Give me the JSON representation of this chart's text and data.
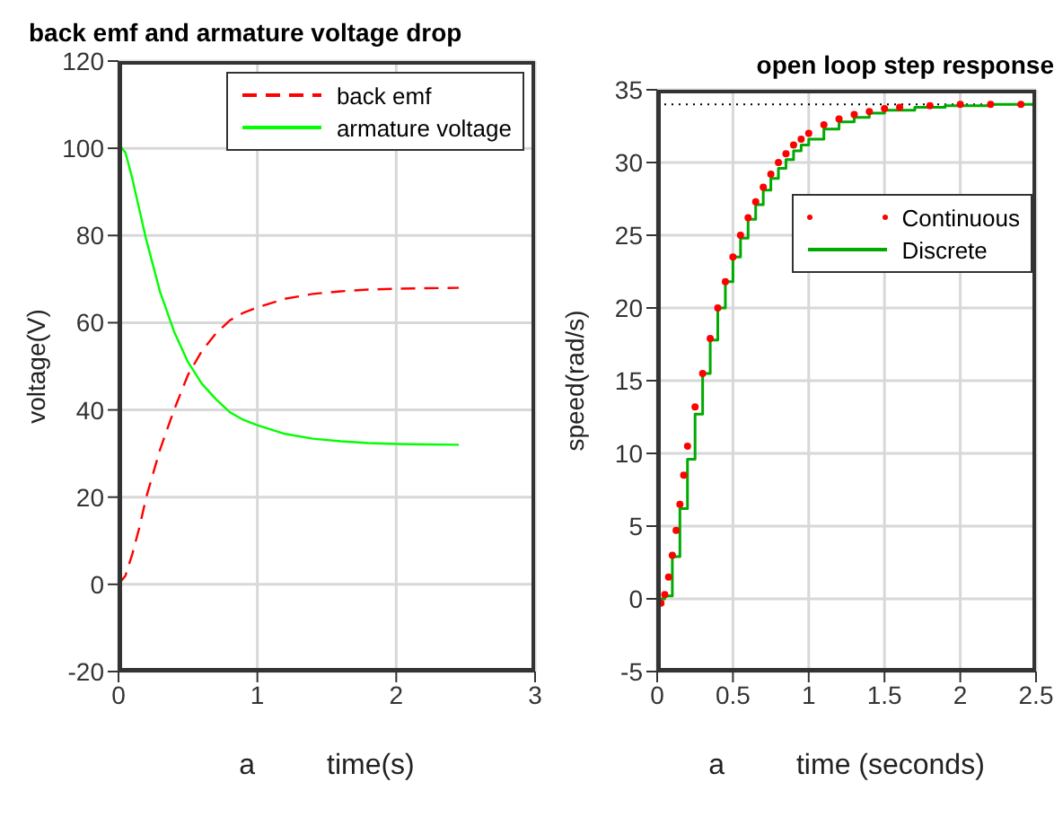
{
  "chart_data": [
    {
      "type": "line",
      "title": "back emf and armature voltage drop",
      "xlabel": "time(s)",
      "ylabel": "voltage(V)",
      "annotations": [
        "a"
      ],
      "xlim": [
        0,
        3
      ],
      "xticks": [
        0,
        1,
        2,
        3
      ],
      "ylim": [
        -20,
        120
      ],
      "yticks": [
        -20,
        0,
        20,
        40,
        60,
        80,
        100,
        120
      ],
      "grid": true,
      "legend": "top right",
      "x": [
        0,
        0.05,
        0.1,
        0.15,
        0.2,
        0.3,
        0.4,
        0.5,
        0.6,
        0.7,
        0.8,
        0.9,
        1.0,
        1.2,
        1.4,
        1.6,
        1.8,
        2.0,
        2.2,
        2.45
      ],
      "series": [
        {
          "name": "back emf",
          "color": "#ff0000",
          "line_style": "dashed",
          "values": [
            0,
            2,
            7,
            13,
            20,
            31,
            40,
            48,
            53.5,
            57.5,
            60.5,
            62.3,
            63.5,
            65.5,
            66.6,
            67.2,
            67.6,
            67.8,
            67.9,
            68
          ]
        },
        {
          "name": "armature voltage",
          "color": "#00ff00",
          "line_style": "solid",
          "values": [
            101,
            99,
            93,
            86,
            79,
            67,
            58,
            51,
            46,
            42.5,
            39.5,
            37.7,
            36.5,
            34.5,
            33.4,
            32.8,
            32.4,
            32.2,
            32.1,
            32
          ]
        }
      ]
    },
    {
      "type": "line",
      "title": "open loop step response",
      "xlabel": "time (seconds)",
      "ylabel": "speed(rad/s)",
      "annotations": [
        "a"
      ],
      "xlim": [
        0,
        2.5
      ],
      "xticks": [
        0,
        0.5,
        1,
        1.5,
        2,
        2.5
      ],
      "ylim": [
        -5,
        35
      ],
      "yticks": [
        -5,
        0,
        5,
        10,
        15,
        20,
        25,
        30,
        35
      ],
      "grid": true,
      "legend": "right",
      "ref_lines": [
        {
          "axis": "y",
          "value": 34,
          "color": "#000000",
          "line_style": "dotted"
        }
      ],
      "series": [
        {
          "name": "Continuous",
          "type": "scatter",
          "marker": "circle",
          "color": "#ff0000",
          "x": [
            0.025,
            0.05,
            0.075,
            0.1,
            0.125,
            0.15,
            0.175,
            0.2,
            0.25,
            0.3,
            0.35,
            0.4,
            0.45,
            0.5,
            0.55,
            0.6,
            0.65,
            0.7,
            0.75,
            0.8,
            0.85,
            0.9,
            0.95,
            1.0,
            1.1,
            1.2,
            1.3,
            1.4,
            1.5,
            1.6,
            1.8,
            2.0,
            2.2,
            2.4
          ],
          "values": [
            -0.3,
            0.3,
            1.5,
            3,
            4.7,
            6.5,
            8.5,
            10.5,
            13.2,
            15.5,
            17.9,
            20,
            21.8,
            23.5,
            25,
            26.2,
            27.3,
            28.3,
            29.2,
            30,
            30.6,
            31.2,
            31.6,
            32,
            32.6,
            33,
            33.3,
            33.5,
            33.7,
            33.8,
            33.9,
            34,
            34,
            34
          ]
        },
        {
          "name": "Discrete",
          "type": "step",
          "color": "#00aa00",
          "line_style": "solid",
          "x": [
            0,
            0.05,
            0.1,
            0.15,
            0.2,
            0.25,
            0.3,
            0.35,
            0.4,
            0.45,
            0.5,
            0.55,
            0.6,
            0.65,
            0.7,
            0.75,
            0.8,
            0.85,
            0.9,
            0.95,
            1.0,
            1.1,
            1.2,
            1.3,
            1.4,
            1.5,
            1.7,
            1.9,
            2.2,
            2.5
          ],
          "values": [
            0,
            0.2,
            2.9,
            6.2,
            9.6,
            12.7,
            15.5,
            17.8,
            20,
            21.8,
            23.5,
            24.8,
            26.1,
            27.1,
            28.1,
            28.9,
            29.6,
            30.2,
            30.8,
            31.2,
            31.6,
            32.3,
            32.8,
            33.1,
            33.4,
            33.6,
            33.8,
            33.9,
            34,
            34
          ]
        }
      ]
    }
  ]
}
